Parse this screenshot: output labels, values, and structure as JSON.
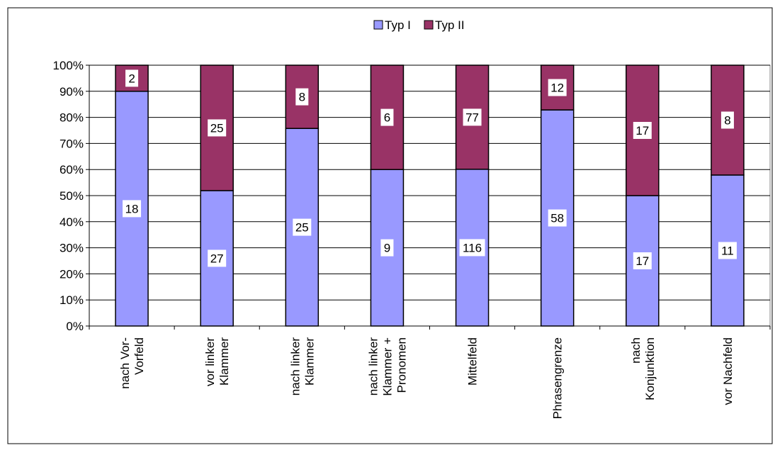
{
  "chart_data": {
    "type": "bar",
    "stacking": "percent",
    "categories": [
      [
        "nach Vor-",
        "Vorfeld"
      ],
      [
        "vor linker",
        "Klammer"
      ],
      [
        "nach linker",
        "Klammer"
      ],
      [
        "nach linker",
        "Klammer +",
        "Pronomen"
      ],
      [
        "Mittelfeld"
      ],
      [
        "Phrasengrenze"
      ],
      [
        "nach",
        "Konjunktion"
      ],
      [
        "vor Nachfeld"
      ]
    ],
    "series": [
      {
        "name": "Typ I",
        "values": [
          18,
          27,
          25,
          9,
          116,
          58,
          17,
          11
        ],
        "color": "#9999ff"
      },
      {
        "name": "Typ II",
        "values": [
          2,
          25,
          8,
          6,
          77,
          12,
          17,
          8
        ],
        "color": "#993366"
      }
    ],
    "ylim": [
      0,
      100
    ],
    "yticks": [
      "0%",
      "10%",
      "20%",
      "30%",
      "40%",
      "50%",
      "60%",
      "70%",
      "80%",
      "90%",
      "100%"
    ],
    "grid": true,
    "legend": "top-center",
    "data_labels": true,
    "xlabel": "",
    "ylabel": "",
    "title": ""
  }
}
